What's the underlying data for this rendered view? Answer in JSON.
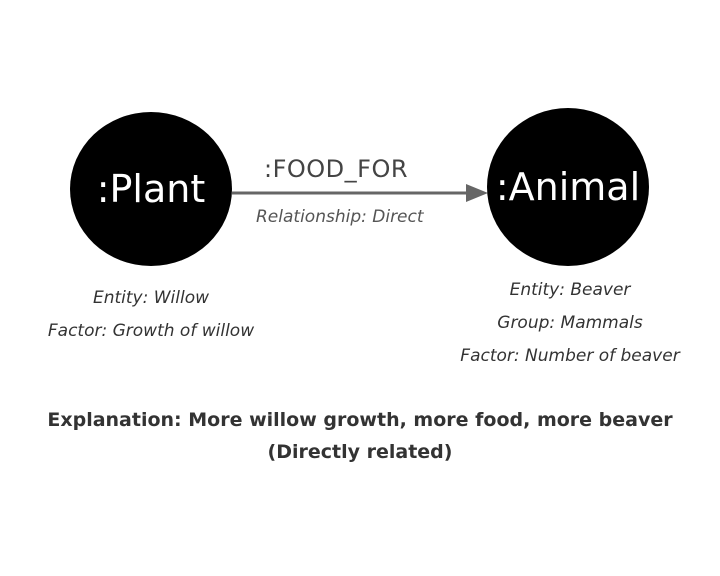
{
  "nodes": {
    "plant": {
      "label": ":Plant",
      "props": [
        "Entity: Willow",
        "Factor: Growth of willow"
      ]
    },
    "animal": {
      "label": ":Animal",
      "props": [
        "Entity: Beaver",
        "Group: Mammals",
        "Factor: Number of beaver"
      ]
    }
  },
  "edge": {
    "type": ":FOOD_FOR",
    "property": "Relationship: Direct"
  },
  "explanation": {
    "line1": "Explanation: More willow growth, more food, more beaver",
    "line2": "(Directly related)"
  },
  "colors": {
    "node_fill": "#000000",
    "node_text": "#ffffff",
    "edge": "#666666",
    "text": "#333333"
  }
}
